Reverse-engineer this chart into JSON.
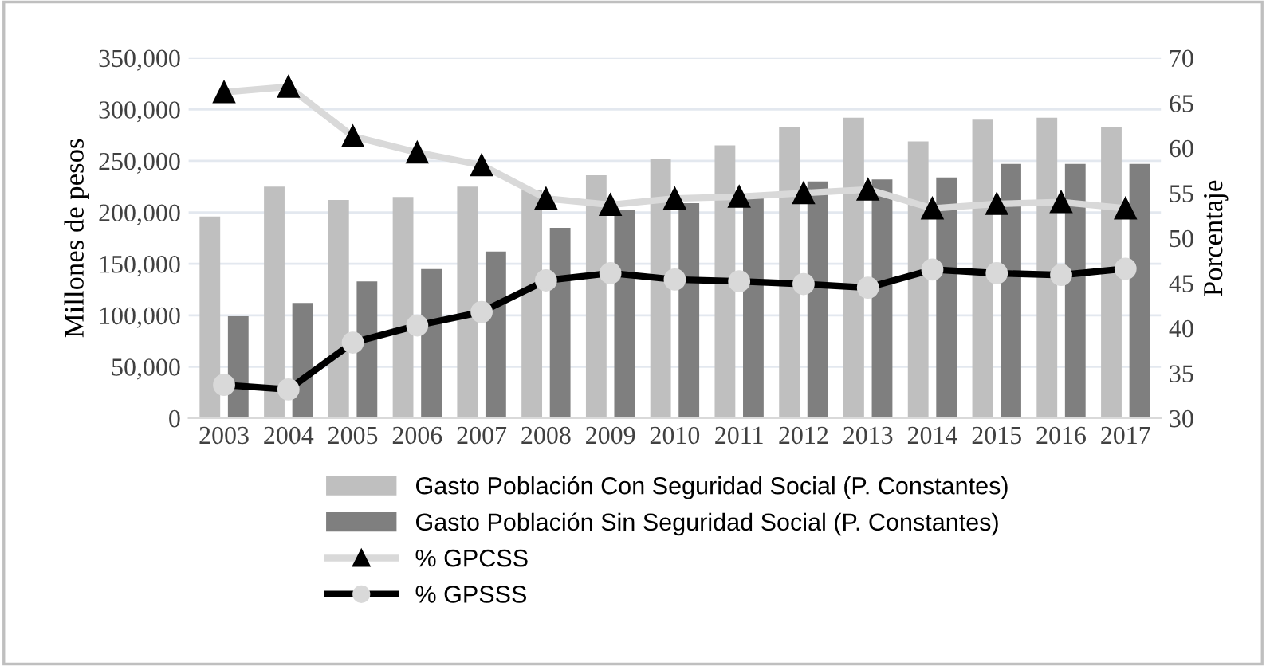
{
  "chart_data": {
    "type": "bar",
    "ylabel": "Millones de pesos",
    "y2label": "Porcentaje",
    "categories": [
      "2003",
      "2004",
      "2005",
      "2006",
      "2007",
      "2008",
      "2009",
      "2010",
      "2011",
      "2012",
      "2013",
      "2014",
      "2015",
      "2016",
      "2017"
    ],
    "series": [
      {
        "name": "Gasto Población Con Seguridad Social (P. Constantes)",
        "color": "#bfbfbf",
        "values": [
          196000,
          225000,
          212000,
          215000,
          225000,
          222000,
          236000,
          252000,
          265000,
          283000,
          292000,
          269000,
          290000,
          292000,
          283000
        ]
      },
      {
        "name": "Gasto Población Sin Seguridad Social (P. Constantes)",
        "color": "#7f7f7f",
        "values": [
          99000,
          112000,
          133000,
          145000,
          162000,
          185000,
          202000,
          209000,
          216000,
          230000,
          232000,
          234000,
          247000,
          247000,
          247000
        ]
      },
      {
        "name": "% GPCSS",
        "type": "line",
        "axis": "y2",
        "color": "#d9d9d9",
        "marker": "triangle",
        "values": [
          66.2,
          66.8,
          61.3,
          59.5,
          58.1,
          54.4,
          53.7,
          54.4,
          54.6,
          55.0,
          55.4,
          53.3,
          53.8,
          54.0,
          53.3
        ]
      },
      {
        "name": "% GPSSS",
        "type": "line",
        "axis": "y2",
        "color": "#000000",
        "marker": "circle",
        "values": [
          33.7,
          33.2,
          38.4,
          40.3,
          41.8,
          45.3,
          46.1,
          45.4,
          45.2,
          44.9,
          44.5,
          46.5,
          46.1,
          45.9,
          46.6
        ]
      }
    ],
    "ylim": [
      0,
      350000
    ],
    "yticks": [
      {
        "value": 0,
        "label": "0"
      },
      {
        "value": 50000,
        "label": "50,000"
      },
      {
        "value": 100000,
        "label": "100,000"
      },
      {
        "value": 150000,
        "label": "150,000"
      },
      {
        "value": 200000,
        "label": "200,000"
      },
      {
        "value": 250000,
        "label": "250,000"
      },
      {
        "value": 300000,
        "label": "300,000"
      },
      {
        "value": 350000,
        "label": "350,000"
      }
    ],
    "y2lim": [
      30,
      70
    ],
    "y2ticks": [
      30,
      35,
      40,
      45,
      50,
      55,
      60,
      65,
      70
    ],
    "grid": "y",
    "legend": "bottom"
  }
}
